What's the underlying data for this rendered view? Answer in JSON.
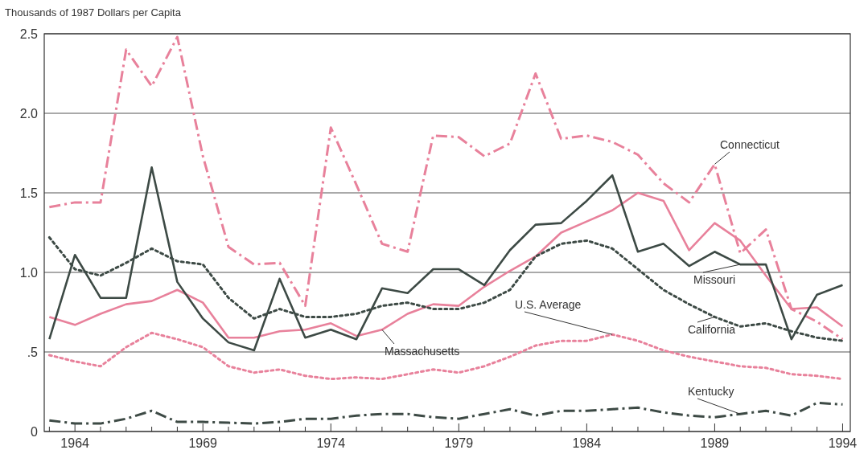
{
  "chart_data": {
    "type": "line",
    "ylabel": "Thousands of 1987 Dollars per Capita",
    "x": [
      1963,
      1964,
      1965,
      1966,
      1967,
      1968,
      1969,
      1970,
      1971,
      1972,
      1973,
      1974,
      1975,
      1976,
      1977,
      1978,
      1979,
      1980,
      1981,
      1982,
      1983,
      1984,
      1985,
      1986,
      1987,
      1988,
      1989,
      1990,
      1991,
      1992,
      1993,
      1994
    ],
    "xlim": [
      1962.8,
      1994.3
    ],
    "xticks": [
      {
        "value": 1963,
        "label": null
      },
      1964,
      {
        "value": 1965,
        "label": null
      },
      {
        "value": 1966,
        "label": null
      },
      {
        "value": 1967,
        "label": null
      },
      {
        "value": 1968,
        "label": null
      },
      1969,
      {
        "value": 1970,
        "label": null
      },
      {
        "value": 1971,
        "label": null
      },
      {
        "value": 1972,
        "label": null
      },
      {
        "value": 1973,
        "label": null
      },
      1974,
      {
        "value": 1975,
        "label": null
      },
      {
        "value": 1976,
        "label": null
      },
      {
        "value": 1977,
        "label": null
      },
      {
        "value": 1978,
        "label": null
      },
      1979,
      {
        "value": 1980,
        "label": null
      },
      {
        "value": 1981,
        "label": null
      },
      {
        "value": 1982,
        "label": null
      },
      {
        "value": 1983,
        "label": null
      },
      1984,
      {
        "value": 1985,
        "label": null
      },
      {
        "value": 1986,
        "label": null
      },
      {
        "value": 1987,
        "label": null
      },
      {
        "value": 1988,
        "label": null
      },
      1989,
      {
        "value": 1990,
        "label": null
      },
      {
        "value": 1991,
        "label": null
      },
      {
        "value": 1992,
        "label": null
      },
      {
        "value": 1993,
        "label": null
      },
      1994
    ],
    "ylim": [
      0,
      2.5
    ],
    "yticks": [
      0,
      {
        "value": 0.5,
        "label": ".5"
      },
      {
        "value": 1,
        "label": "1.0"
      },
      {
        "value": 1.5,
        "label": "1.5"
      },
      {
        "value": 2,
        "label": "2.0"
      },
      {
        "value": 2.5,
        "label": "2.5"
      }
    ],
    "grid": "y",
    "legend": false,
    "series": [
      {
        "name": "Connecticut",
        "color": "#e8819b",
        "line_style": "dashed",
        "values": [
          1.41,
          1.44,
          1.44,
          2.4,
          2.17,
          2.48,
          1.73,
          1.16,
          1.05,
          1.06,
          0.79,
          1.91,
          1.55,
          1.18,
          1.13,
          1.86,
          1.85,
          1.73,
          1.81,
          2.25,
          1.84,
          1.86,
          1.82,
          1.74,
          1.56,
          1.44,
          1.68,
          1.12,
          1.27,
          0.77,
          0.69,
          0.58
        ]
      },
      {
        "name": "Massachusetts",
        "color": "#e8819b",
        "line_style": "solid",
        "values": [
          0.72,
          0.67,
          0.74,
          0.8,
          0.82,
          0.89,
          0.81,
          0.59,
          0.59,
          0.63,
          0.64,
          0.68,
          0.6,
          0.64,
          0.74,
          0.8,
          0.79,
          0.91,
          1.01,
          1.1,
          1.25,
          1.32,
          1.39,
          1.5,
          1.45,
          1.14,
          1.31,
          1.2,
          0.98,
          0.77,
          0.78,
          0.66
        ]
      },
      {
        "name": "Missouri",
        "color": "#3d4a45",
        "line_style": "solid",
        "values": [
          0.58,
          1.11,
          0.84,
          0.84,
          1.66,
          0.94,
          0.71,
          0.56,
          0.51,
          0.96,
          0.59,
          0.64,
          0.58,
          0.9,
          0.87,
          1.02,
          1.02,
          0.92,
          1.14,
          1.3,
          1.31,
          1.45,
          1.61,
          1.13,
          1.18,
          1.04,
          1.13,
          1.05,
          1.05,
          0.58,
          0.86,
          0.92
        ]
      },
      {
        "name": "California",
        "color": "#3d4a45",
        "line_style": "dotted",
        "values": [
          1.22,
          1.02,
          0.98,
          1.06,
          1.15,
          1.07,
          1.05,
          0.84,
          0.71,
          0.77,
          0.72,
          0.72,
          0.74,
          0.79,
          0.81,
          0.77,
          0.77,
          0.81,
          0.89,
          1.1,
          1.18,
          1.2,
          1.15,
          1.02,
          0.89,
          0.8,
          0.72,
          0.66,
          0.68,
          0.63,
          0.59,
          0.57
        ]
      },
      {
        "name": "U.S. Average",
        "color": "#e8819b",
        "line_style": "dotted",
        "values": [
          0.48,
          0.44,
          0.41,
          0.53,
          0.62,
          0.58,
          0.53,
          0.41,
          0.37,
          0.39,
          0.35,
          0.33,
          0.34,
          0.33,
          0.36,
          0.39,
          0.37,
          0.41,
          0.47,
          0.54,
          0.57,
          0.57,
          0.61,
          0.57,
          0.51,
          0.47,
          0.44,
          0.41,
          0.4,
          0.36,
          0.35,
          0.33
        ]
      },
      {
        "name": "Kentucky",
        "color": "#3d4a45",
        "line_style": "dashed",
        "values": [
          0.07,
          0.05,
          0.05,
          0.08,
          0.13,
          0.06,
          0.06,
          0.055,
          0.05,
          0.06,
          0.08,
          0.08,
          0.1,
          0.11,
          0.11,
          0.09,
          0.08,
          0.11,
          0.14,
          0.1,
          0.13,
          0.13,
          0.14,
          0.15,
          0.12,
          0.1,
          0.09,
          0.11,
          0.13,
          0.1,
          0.18,
          0.17
        ]
      }
    ]
  }
}
